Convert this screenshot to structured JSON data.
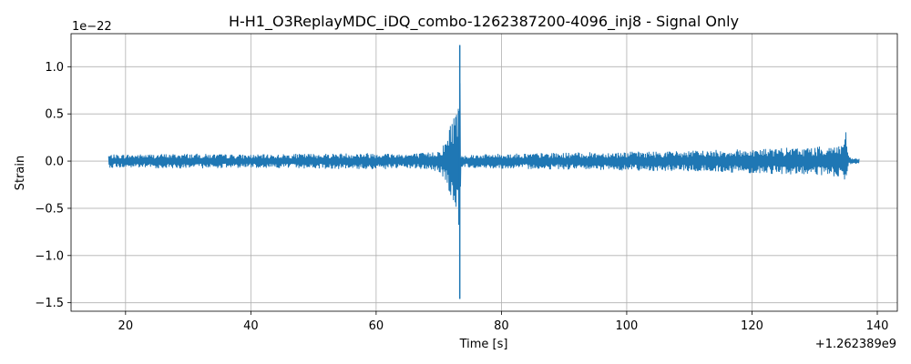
{
  "chart_data": {
    "type": "line",
    "title": "H-H1_O3ReplayMDC_iDQ_combo-1262387200-4096_inj8 - Signal Only",
    "xlabel": "Time [s]",
    "ylabel": "Strain",
    "x_offset_label": "+1.262389e9",
    "y_scale_label": "1e−22",
    "xlim": [
      11.3,
      143.2
    ],
    "ylim": [
      -1.59,
      1.35
    ],
    "x_ticks": [
      20,
      40,
      60,
      80,
      100,
      120,
      140
    ],
    "x_tick_labels": [
      "20",
      "40",
      "60",
      "80",
      "100",
      "120",
      "140"
    ],
    "y_ticks": [
      -1.5,
      -1.0,
      -0.5,
      0.0,
      0.5,
      1.0
    ],
    "y_tick_labels": [
      "−1.5",
      "−1.0",
      "−0.5",
      "0.0",
      "0.5",
      "1.0"
    ],
    "grid": true,
    "series": [
      {
        "color": "#1f77b4",
        "envelope": {
          "t": [
            17.3,
            30,
            40,
            50,
            60,
            65,
            68,
            70,
            71,
            72,
            72.8,
            73.2,
            73.35,
            73.5,
            74,
            80,
            90,
            100,
            110,
            120,
            130,
            134.5,
            135,
            135.2,
            135.5,
            136,
            137.1
          ],
          "upper": [
            0.07,
            0.08,
            0.07,
            0.08,
            0.09,
            0.08,
            0.09,
            0.12,
            0.2,
            0.45,
            0.6,
            0.7,
            1.23,
            0.08,
            0.07,
            0.08,
            0.09,
            0.1,
            0.11,
            0.13,
            0.15,
            0.18,
            0.45,
            0.12,
            0.04,
            0.03,
            0.03
          ],
          "lower": [
            -0.07,
            -0.08,
            -0.07,
            -0.08,
            -0.09,
            -0.08,
            -0.09,
            -0.12,
            -0.2,
            -0.4,
            -0.55,
            -0.72,
            -1.46,
            -0.08,
            -0.07,
            -0.08,
            -0.09,
            -0.1,
            -0.11,
            -0.13,
            -0.15,
            -0.18,
            -0.33,
            -0.12,
            -0.04,
            -0.03,
            -0.03
          ]
        }
      }
    ]
  }
}
